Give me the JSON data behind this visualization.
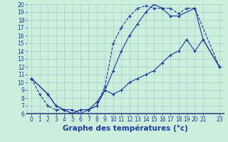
{
  "title": "Graphe des températures (°c)",
  "bg_color": "#cceedd",
  "grid_color": "#aacccc",
  "line_color": "#1a3a9e",
  "marker": "+",
  "xlim": [
    -0.5,
    23.5
  ],
  "ylim": [
    6,
    20
  ],
  "xticks": [
    0,
    1,
    2,
    3,
    4,
    5,
    6,
    7,
    8,
    9,
    10,
    11,
    12,
    13,
    14,
    15,
    16,
    17,
    18,
    19,
    20,
    21,
    23
  ],
  "yticks": [
    6,
    7,
    8,
    9,
    10,
    11,
    12,
    13,
    14,
    15,
    16,
    17,
    18,
    19,
    20
  ],
  "series1_x": [
    0,
    1,
    2,
    3,
    4,
    5,
    6,
    7,
    8,
    9,
    10,
    11,
    12,
    13,
    14,
    15,
    16,
    17,
    18,
    19,
    20,
    23
  ],
  "series1_y": [
    10.5,
    8.5,
    7.0,
    6.5,
    6.5,
    6.0,
    6.5,
    6.5,
    7.0,
    9.5,
    15.0,
    17.0,
    18.5,
    19.5,
    19.8,
    19.5,
    19.5,
    19.5,
    18.8,
    19.5,
    19.5,
    12.0
  ],
  "series2_x": [
    0,
    2,
    3,
    4,
    5,
    6,
    7,
    8,
    9,
    10,
    11,
    12,
    13,
    14,
    15,
    16,
    17,
    18,
    20,
    21,
    23
  ],
  "series2_y": [
    10.5,
    8.5,
    7.0,
    6.5,
    6.0,
    6.5,
    6.5,
    7.5,
    9.0,
    11.5,
    14.0,
    16.0,
    17.5,
    19.0,
    20.0,
    19.5,
    18.5,
    18.5,
    19.5,
    15.5,
    12.0
  ],
  "series3_x": [
    0,
    2,
    3,
    4,
    5,
    6,
    7,
    8,
    9,
    10,
    11,
    12,
    13,
    14,
    15,
    16,
    17,
    18,
    19,
    20,
    21,
    23
  ],
  "series3_y": [
    10.5,
    8.5,
    7.0,
    6.5,
    6.5,
    6.0,
    6.5,
    7.0,
    9.0,
    8.5,
    9.0,
    10.0,
    10.5,
    11.0,
    11.5,
    12.5,
    13.5,
    14.0,
    15.5,
    14.0,
    15.5,
    12.0
  ],
  "tick_fontsize": 5.5,
  "xlabel_fontsize": 7.5
}
